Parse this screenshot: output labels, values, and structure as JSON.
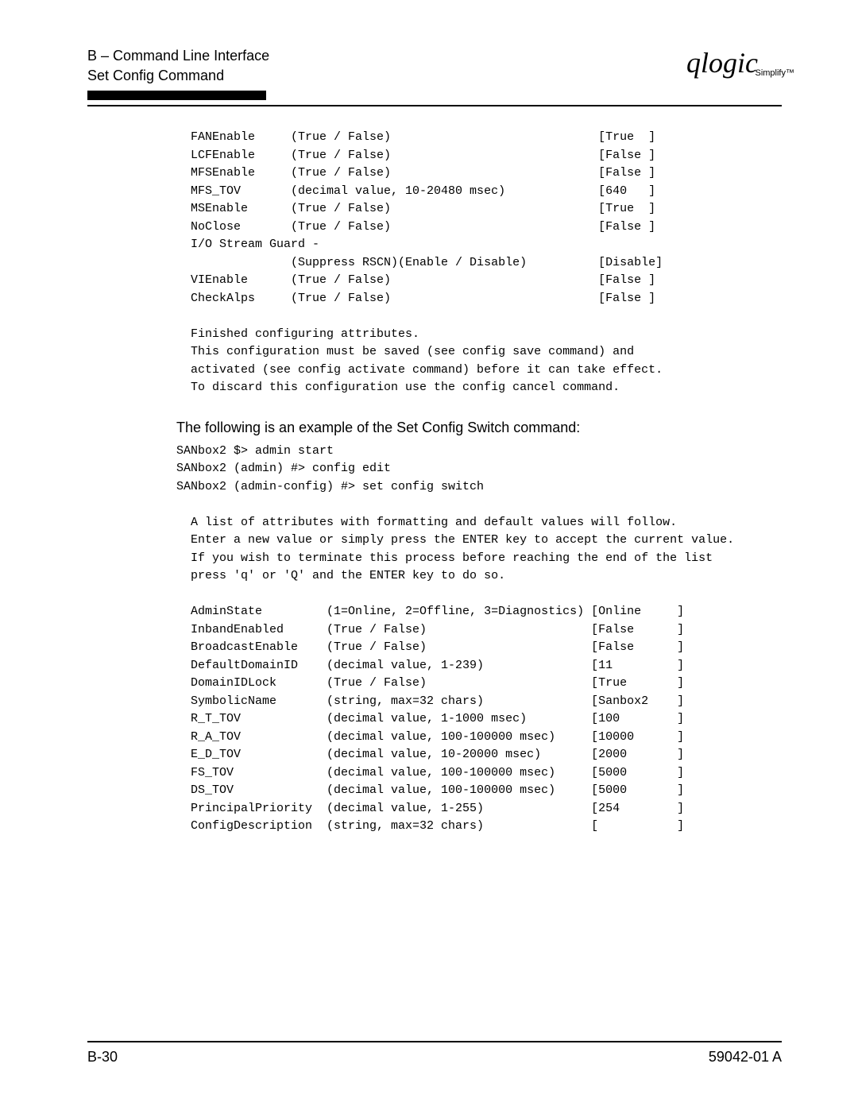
{
  "header": {
    "section": "B – Command Line Interface",
    "title": "Set Config Command",
    "logo_text": "qlogic",
    "logo_sub": "Simplify™"
  },
  "block1_lines": [
    "  FANEnable     (True / False)                             [True  ]",
    "  LCFEnable     (True / False)                             [False ]",
    "  MFSEnable     (True / False)                             [False ]",
    "  MFS_TOV       (decimal value, 10-20480 msec)             [640   ]",
    "  MSEnable      (True / False)                             [True  ]",
    "  NoClose       (True / False)                             [False ]",
    "  I/O Stream Guard -",
    "                (Suppress RSCN)(Enable / Disable)          [Disable]",
    "  VIEnable      (True / False)                             [False ]",
    "  CheckAlps     (True / False)                             [False ]",
    "",
    "  Finished configuring attributes.",
    "  This configuration must be saved (see config save command) and",
    "  activated (see config activate command) before it can take effect.",
    "  To discard this configuration use the config cancel command."
  ],
  "body_sentence": "The following is an example of the Set Config Switch command:",
  "block2_lines": [
    "SANbox2 $> admin start",
    "SANbox2 (admin) #> config edit",
    "SANbox2 (admin-config) #> set config switch",
    "",
    "  A list of attributes with formatting and default values will follow.",
    "  Enter a new value or simply press the ENTER key to accept the current value.",
    "  If you wish to terminate this process before reaching the end of the list",
    "  press 'q' or 'Q' and the ENTER key to do so.",
    "",
    "  AdminState         (1=Online, 2=Offline, 3=Diagnostics) [Online     ]",
    "  InbandEnabled      (True / False)                       [False      ]",
    "  BroadcastEnable    (True / False)                       [False      ]",
    "  DefaultDomainID    (decimal value, 1-239)               [11         ]",
    "  DomainIDLock       (True / False)                       [True       ]",
    "  SymbolicName       (string, max=32 chars)               [Sanbox2    ]",
    "  R_T_TOV            (decimal value, 1-1000 msec)         [100        ]",
    "  R_A_TOV            (decimal value, 100-100000 msec)     [10000      ]",
    "  E_D_TOV            (decimal value, 10-20000 msec)       [2000       ]",
    "  FS_TOV             (decimal value, 100-100000 msec)     [5000       ]",
    "  DS_TOV             (decimal value, 100-100000 msec)     [5000       ]",
    "  PrincipalPriority  (decimal value, 1-255)               [254        ]",
    "  ConfigDescription  (string, max=32 chars)               [           ]"
  ],
  "footer": {
    "page": "B-30",
    "doc": "59042-01 A"
  }
}
